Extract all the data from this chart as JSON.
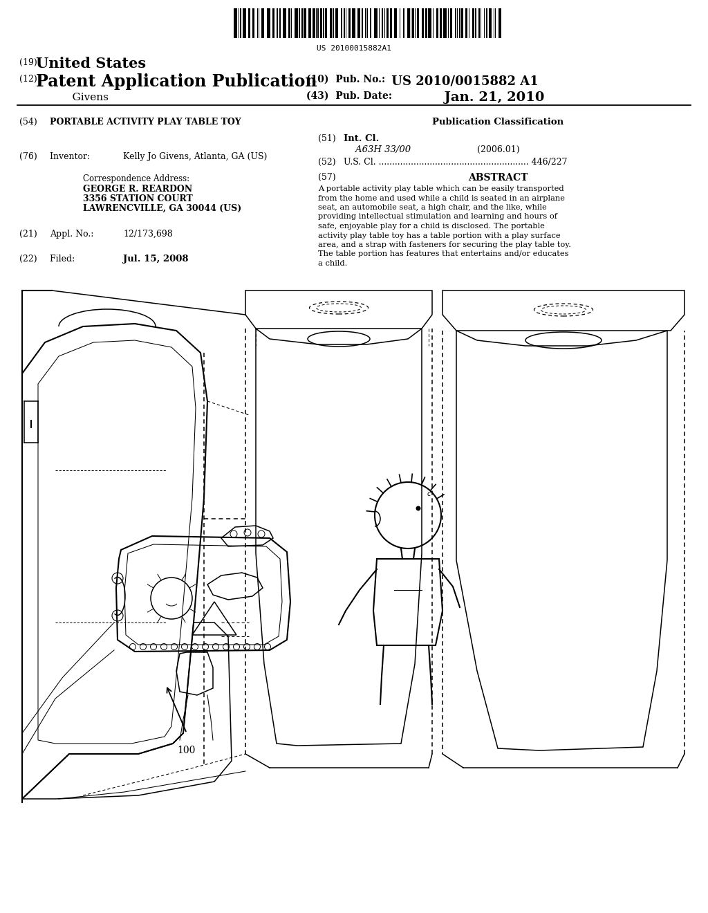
{
  "bg_color": "#ffffff",
  "barcode_text": "US 20100015882A1",
  "title_19_prefix": "(19) ",
  "title_19_main": "United States",
  "title_12_prefix": "(12) ",
  "title_12_main": "Patent Application Publication",
  "inventor_name": "    Givens",
  "pub_no_label": "(10)  Pub. No.:",
  "pub_no_value": " US 2010/0015882 A1",
  "pub_date_label": "(43)  Pub. Date:",
  "pub_date_value": "          Jan. 21, 2010",
  "section54_label": "(54)  ",
  "section54_text": "PORTABLE ACTIVITY PLAY TABLE TOY",
  "pub_class_title": "Publication Classification",
  "section51_label": "(51)  ",
  "section51_text": "Int. Cl.",
  "section51_sub": "    A63H 33/00",
  "section51_year": "          (2006.01)",
  "section52_label": "(52)  ",
  "section52_text": "U.S. Cl. ........................................................ 446/227",
  "section57_label": "(57)",
  "section57_title": "ABSTRACT",
  "section76_label": "(76)  ",
  "section76_title": "Inventor:     ",
  "section76_value": "Kelly Jo Givens, Atlanta, GA (US)",
  "corr_title": "Correspondence Address:",
  "corr_line1": "GEORGE R. REARDON",
  "corr_line2": "3356 STATION COURT",
  "corr_line3": "LAWRENCVILLE, GA 30044 (US)",
  "section21_label": "(21)  ",
  "section21_title": "Appl. No.:    ",
  "section21_value": "12/173,698",
  "section22_label": "(22)  ",
  "section22_title": "Filed:            ",
  "section22_value": "Jul. 15, 2008",
  "ref_number": "100",
  "abstract_lines": [
    "A portable activity play table which can be easily transported",
    "from the home and used while a child is seated in an airplane",
    "seat, an automobile seat, a high chair, and the like, while",
    "providing intellectual stimulation and learning and hours of",
    "safe, enjoyable play for a child is disclosed. The portable",
    "activity play table toy has a table portion with a play surface",
    "area, and a strap with fasteners for securing the play table toy.",
    "The table portion has features that entertains and/or educates",
    "a child."
  ]
}
